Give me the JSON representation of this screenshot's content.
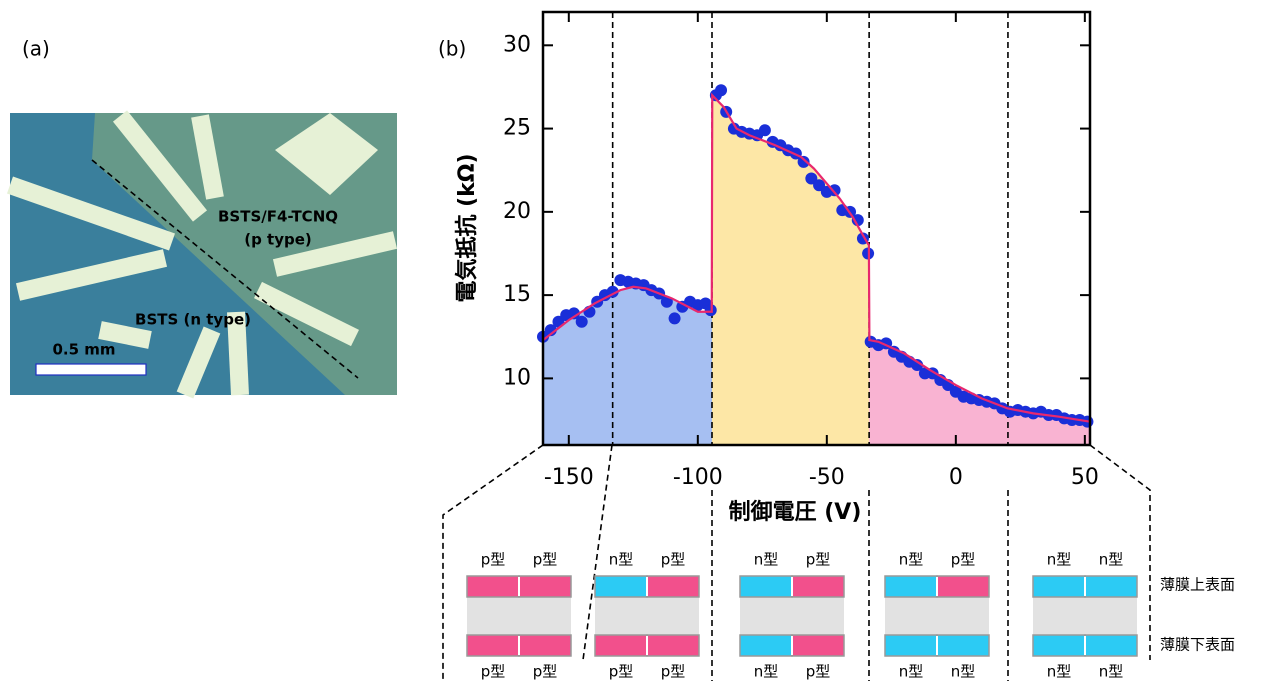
{
  "panel_a": {
    "label": "(a)",
    "p_region": "BSTS/F4-TCNQ",
    "p_type": "(p type)",
    "n_region": "BSTS (n type)",
    "scale_bar": "0.5 mm"
  },
  "chart_data": {
    "type": "scatter",
    "panel_label": "(b)",
    "x_label": "制御電圧 (V)",
    "y_label": "電気抵抗 (kΩ)",
    "xlim": [
      -160,
      52
    ],
    "ylim": [
      6,
      32
    ],
    "xticks": [
      -150,
      -100,
      -50,
      0,
      50
    ],
    "yticks": [
      10,
      15,
      20,
      25,
      30
    ],
    "series": [
      {
        "type": "scatter",
        "color": "#1a2fd8",
        "x": [
          -160,
          -157,
          -154,
          -151,
          -148,
          -145,
          -142,
          -139,
          -136,
          -133,
          -130,
          -127,
          -124,
          -121,
          -118,
          -115,
          -112,
          -109,
          -106,
          -103,
          -100,
          -97,
          -95,
          -93,
          -91,
          -89,
          -86,
          -83,
          -80,
          -77,
          -74,
          -71,
          -68,
          -65,
          -62,
          -59,
          -56,
          -53,
          -50,
          -47,
          -44,
          -41,
          -38,
          -36,
          -34,
          -33,
          -30,
          -27,
          -24,
          -21,
          -18,
          -15,
          -12,
          -9,
          -6,
          -3,
          0,
          3,
          6,
          9,
          12,
          15,
          18,
          21,
          24,
          27,
          30,
          33,
          36,
          39,
          42,
          45,
          48,
          51
        ],
        "values": [
          12.5,
          12.9,
          13.4,
          13.8,
          13.9,
          13.4,
          14.0,
          14.6,
          15.0,
          15.2,
          15.9,
          15.8,
          15.7,
          15.6,
          15.3,
          15.1,
          14.6,
          13.6,
          14.3,
          14.6,
          14.4,
          14.5,
          14.1,
          27.0,
          27.3,
          26.0,
          25.0,
          24.8,
          24.7,
          24.6,
          24.9,
          24.2,
          24.0,
          23.7,
          23.5,
          23.0,
          22.0,
          21.6,
          21.2,
          21.3,
          20.1,
          20.0,
          19.5,
          18.4,
          17.5,
          12.2,
          12.0,
          12.1,
          11.6,
          11.3,
          11.0,
          10.8,
          10.3,
          10.3,
          9.9,
          9.6,
          9.2,
          8.9,
          8.8,
          8.7,
          8.6,
          8.5,
          8.2,
          8.0,
          8.1,
          8.0,
          7.9,
          8.0,
          7.8,
          7.8,
          7.6,
          7.5,
          7.5,
          7.4
        ]
      },
      {
        "type": "line",
        "color": "#e8286e",
        "x": [
          -160,
          -150,
          -140,
          -130,
          -125,
          -120,
          -110,
          -100,
          -94.6,
          -94.4,
          -90,
          -85,
          -80,
          -70,
          -60,
          -55,
          -50,
          -45,
          -40,
          -36,
          -33.7,
          -33.5,
          -30,
          -20,
          -10,
          0,
          10,
          20,
          30,
          40,
          52
        ],
        "values": [
          12.3,
          13.5,
          14.5,
          15.3,
          15.5,
          15.4,
          14.8,
          14.0,
          14.0,
          27.0,
          26.3,
          25.0,
          24.6,
          24.0,
          23.3,
          22.6,
          21.7,
          20.8,
          19.7,
          18.6,
          18.0,
          12.3,
          12.2,
          11.5,
          10.5,
          9.6,
          8.8,
          8.2,
          7.9,
          7.7,
          7.4
        ]
      }
    ],
    "fills": [
      {
        "from": -160,
        "to": -94.5,
        "color": "#a6bff2"
      },
      {
        "from": -94.5,
        "to": -33.6,
        "color": "#fde7a6"
      },
      {
        "from": -33.6,
        "to": 52,
        "color": "#f9b3d2"
      }
    ],
    "vlines": [
      -133,
      -94.5,
      -33.6,
      20.2
    ]
  },
  "schematic": {
    "layer_labels": [
      "薄膜上表面",
      "薄膜下表面"
    ],
    "panels": [
      {
        "top": [
          {
            "label": "p型",
            "color": "#f2508c"
          },
          {
            "label": "p型",
            "color": "#f2508c"
          }
        ],
        "bottom": [
          {
            "label": "p型",
            "color": "#f2508c"
          },
          {
            "label": "p型",
            "color": "#f2508c"
          }
        ]
      },
      {
        "top": [
          {
            "label": "n型",
            "color": "#2ccbf4"
          },
          {
            "label": "p型",
            "color": "#f2508c"
          }
        ],
        "bottom": [
          {
            "label": "p型",
            "color": "#f2508c"
          },
          {
            "label": "p型",
            "color": "#f2508c"
          }
        ]
      },
      {
        "top": [
          {
            "label": "n型",
            "color": "#2ccbf4"
          },
          {
            "label": "p型",
            "color": "#f2508c"
          }
        ],
        "bottom": [
          {
            "label": "n型",
            "color": "#2ccbf4"
          },
          {
            "label": "p型",
            "color": "#f2508c"
          }
        ]
      },
      {
        "top": [
          {
            "label": "n型",
            "color": "#2ccbf4"
          },
          {
            "label": "p型",
            "color": "#f2508c"
          }
        ],
        "bottom": [
          {
            "label": "n型",
            "color": "#2ccbf4"
          },
          {
            "label": "n型",
            "color": "#2ccbf4"
          }
        ]
      },
      {
        "top": [
          {
            "label": "n型",
            "color": "#2ccbf4"
          },
          {
            "label": "n型",
            "color": "#2ccbf4"
          }
        ],
        "bottom": [
          {
            "label": "n型",
            "color": "#2ccbf4"
          },
          {
            "label": "n型",
            "color": "#2ccbf4"
          }
        ]
      }
    ]
  }
}
